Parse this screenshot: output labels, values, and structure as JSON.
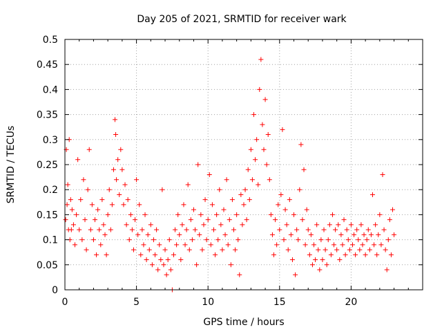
{
  "chart_data": {
    "type": "scatter",
    "title": "Day 205 of 2021, SRMTID for receiver wark",
    "xlabel": "GPS time / hours",
    "ylabel": "SRMTID / TECUs",
    "xlim": [
      0,
      25
    ],
    "ylim": [
      0,
      0.5
    ],
    "x_ticks": [
      {
        "value": 0,
        "label": "0"
      },
      {
        "value": 5,
        "label": "5"
      },
      {
        "value": 10,
        "label": "10"
      },
      {
        "value": 15,
        "label": "15"
      },
      {
        "value": 20,
        "label": "20"
      }
    ],
    "y_ticks": [
      {
        "value": 0,
        "label": "0"
      },
      {
        "value": 0.05,
        "label": "0.05"
      },
      {
        "value": 0.1,
        "label": "0.1"
      },
      {
        "value": 0.15,
        "label": "0.15"
      },
      {
        "value": 0.2,
        "label": "0.2"
      },
      {
        "value": 0.25,
        "label": "0.25"
      },
      {
        "value": 0.3,
        "label": "0.3"
      },
      {
        "value": 0.35,
        "label": "0.35"
      },
      {
        "value": 0.4,
        "label": "0.4"
      },
      {
        "value": 0.45,
        "label": "0.45"
      },
      {
        "value": 0.5,
        "label": "0.5"
      }
    ],
    "grid": true,
    "marker": "+",
    "color": "#ff0000",
    "series": [
      {
        "name": "SRMTID",
        "points": [
          [
            0.05,
            0.14
          ],
          [
            0.1,
            0.28
          ],
          [
            0.15,
            0.17
          ],
          [
            0.2,
            0.21
          ],
          [
            0.25,
            0.12
          ],
          [
            0.3,
            0.3
          ],
          [
            0.35,
            0.1
          ],
          [
            0.4,
            0.18
          ],
          [
            0.45,
            0.12
          ],
          [
            0.5,
            0.16
          ],
          [
            0.6,
            0.13
          ],
          [
            0.7,
            0.09
          ],
          [
            0.8,
            0.15
          ],
          [
            0.9,
            0.26
          ],
          [
            1.0,
            0.12
          ],
          [
            1.1,
            0.18
          ],
          [
            1.2,
            0.1
          ],
          [
            1.3,
            0.22
          ],
          [
            1.4,
            0.14
          ],
          [
            1.5,
            0.08
          ],
          [
            1.6,
            0.2
          ],
          [
            1.7,
            0.28
          ],
          [
            1.8,
            0.12
          ],
          [
            1.9,
            0.17
          ],
          [
            2.0,
            0.1
          ],
          [
            2.1,
            0.14
          ],
          [
            2.2,
            0.07
          ],
          [
            2.3,
            0.16
          ],
          [
            2.4,
            0.12
          ],
          [
            2.5,
            0.09
          ],
          [
            2.6,
            0.18
          ],
          [
            2.7,
            0.13
          ],
          [
            2.8,
            0.11
          ],
          [
            2.9,
            0.07
          ],
          [
            3.0,
            0.15
          ],
          [
            3.1,
            0.2
          ],
          [
            3.2,
            0.12
          ],
          [
            3.3,
            0.17
          ],
          [
            3.4,
            0.24
          ],
          [
            3.5,
            0.34
          ],
          [
            3.55,
            0.31
          ],
          [
            3.6,
            0.22
          ],
          [
            3.7,
            0.26
          ],
          [
            3.8,
            0.19
          ],
          [
            3.9,
            0.28
          ],
          [
            4.0,
            0.24
          ],
          [
            4.1,
            0.17
          ],
          [
            4.2,
            0.21
          ],
          [
            4.3,
            0.13
          ],
          [
            4.4,
            0.18
          ],
          [
            4.5,
            0.1
          ],
          [
            4.6,
            0.15
          ],
          [
            4.7,
            0.12
          ],
          [
            4.8,
            0.08
          ],
          [
            4.9,
            0.14
          ],
          [
            5.0,
            0.22
          ],
          [
            5.1,
            0.11
          ],
          [
            5.2,
            0.17
          ],
          [
            5.3,
            0.07
          ],
          [
            5.4,
            0.12
          ],
          [
            5.5,
            0.09
          ],
          [
            5.6,
            0.15
          ],
          [
            5.7,
            0.06
          ],
          [
            5.8,
            0.11
          ],
          [
            5.9,
            0.08
          ],
          [
            6.0,
            0.13
          ],
          [
            6.1,
            0.05
          ],
          [
            6.2,
            0.1
          ],
          [
            6.3,
            0.07
          ],
          [
            6.4,
            0.12
          ],
          [
            6.5,
            0.04
          ],
          [
            6.6,
            0.09
          ],
          [
            6.7,
            0.06
          ],
          [
            6.8,
            0.2
          ],
          [
            6.9,
            0.05
          ],
          [
            7.0,
            0.08
          ],
          [
            7.1,
            0.03
          ],
          [
            7.2,
            0.06
          ],
          [
            7.3,
            0.1
          ],
          [
            7.4,
            0.04
          ],
          [
            7.5,
            0.0
          ],
          [
            7.6,
            0.07
          ],
          [
            7.7,
            0.12
          ],
          [
            7.8,
            0.09
          ],
          [
            7.9,
            0.15
          ],
          [
            8.0,
            0.11
          ],
          [
            8.1,
            0.06
          ],
          [
            8.2,
            0.13
          ],
          [
            8.3,
            0.17
          ],
          [
            8.4,
            0.09
          ],
          [
            8.5,
            0.12
          ],
          [
            8.6,
            0.21
          ],
          [
            8.7,
            0.08
          ],
          [
            8.8,
            0.14
          ],
          [
            8.9,
            0.1
          ],
          [
            9.0,
            0.16
          ],
          [
            9.1,
            0.12
          ],
          [
            9.2,
            0.05
          ],
          [
            9.3,
            0.25
          ],
          [
            9.4,
            0.11
          ],
          [
            9.5,
            0.15
          ],
          [
            9.6,
            0.08
          ],
          [
            9.7,
            0.13
          ],
          [
            9.8,
            0.18
          ],
          [
            9.9,
            0.1
          ],
          [
            10.0,
            0.14
          ],
          [
            10.1,
            0.23
          ],
          [
            10.2,
            0.09
          ],
          [
            10.3,
            0.17
          ],
          [
            10.4,
            0.12
          ],
          [
            10.5,
            0.07
          ],
          [
            10.6,
            0.15
          ],
          [
            10.7,
            0.1
          ],
          [
            10.8,
            0.2
          ],
          [
            10.9,
            0.13
          ],
          [
            11.0,
            0.08
          ],
          [
            11.1,
            0.16
          ],
          [
            11.2,
            0.11
          ],
          [
            11.3,
            0.22
          ],
          [
            11.4,
            0.09
          ],
          [
            11.5,
            0.14
          ],
          [
            11.6,
            0.05
          ],
          [
            11.7,
            0.18
          ],
          [
            11.8,
            0.12
          ],
          [
            11.9,
            0.08
          ],
          [
            12.0,
            0.15
          ],
          [
            12.1,
            0.1
          ],
          [
            12.2,
            0.03
          ],
          [
            12.3,
            0.19
          ],
          [
            12.4,
            0.13
          ],
          [
            12.5,
            0.17
          ],
          [
            12.6,
            0.2
          ],
          [
            12.7,
            0.14
          ],
          [
            12.8,
            0.24
          ],
          [
            12.9,
            0.18
          ],
          [
            13.0,
            0.28
          ],
          [
            13.1,
            0.22
          ],
          [
            13.2,
            0.35
          ],
          [
            13.3,
            0.26
          ],
          [
            13.4,
            0.3
          ],
          [
            13.5,
            0.21
          ],
          [
            13.6,
            0.4
          ],
          [
            13.7,
            0.46
          ],
          [
            13.8,
            0.33
          ],
          [
            13.9,
            0.28
          ],
          [
            14.0,
            0.38
          ],
          [
            14.1,
            0.25
          ],
          [
            14.2,
            0.31
          ],
          [
            14.3,
            0.22
          ],
          [
            14.4,
            0.15
          ],
          [
            14.5,
            0.11
          ],
          [
            14.6,
            0.07
          ],
          [
            14.7,
            0.14
          ],
          [
            14.8,
            0.09
          ],
          [
            14.9,
            0.17
          ],
          [
            15.0,
            0.12
          ],
          [
            15.1,
            0.19
          ],
          [
            15.2,
            0.32
          ],
          [
            15.3,
            0.1
          ],
          [
            15.4,
            0.16
          ],
          [
            15.5,
            0.13
          ],
          [
            15.6,
            0.08
          ],
          [
            15.7,
            0.18
          ],
          [
            15.8,
            0.11
          ],
          [
            15.9,
            0.06
          ],
          [
            16.0,
            0.15
          ],
          [
            16.1,
            0.03
          ],
          [
            16.2,
            0.12
          ],
          [
            16.3,
            0.1
          ],
          [
            16.4,
            0.2
          ],
          [
            16.5,
            0.29
          ],
          [
            16.6,
            0.14
          ],
          [
            16.7,
            0.24
          ],
          [
            16.8,
            0.09
          ],
          [
            16.9,
            0.16
          ],
          [
            17.0,
            0.12
          ],
          [
            17.1,
            0.07
          ],
          [
            17.2,
            0.11
          ],
          [
            17.3,
            0.05
          ],
          [
            17.4,
            0.09
          ],
          [
            17.5,
            0.06
          ],
          [
            17.6,
            0.13
          ],
          [
            17.7,
            0.08
          ],
          [
            17.8,
            0.04
          ],
          [
            17.9,
            0.1
          ],
          [
            18.0,
            0.06
          ],
          [
            18.1,
            0.12
          ],
          [
            18.2,
            0.08
          ],
          [
            18.3,
            0.05
          ],
          [
            18.4,
            0.1
          ],
          [
            18.5,
            0.13
          ],
          [
            18.6,
            0.07
          ],
          [
            18.7,
            0.15
          ],
          [
            18.8,
            0.09
          ],
          [
            18.9,
            0.12
          ],
          [
            19.0,
            0.08
          ],
          [
            19.1,
            0.13
          ],
          [
            19.2,
            0.06
          ],
          [
            19.3,
            0.11
          ],
          [
            19.4,
            0.09
          ],
          [
            19.5,
            0.14
          ],
          [
            19.6,
            0.07
          ],
          [
            19.7,
            0.12
          ],
          [
            19.8,
            0.1
          ],
          [
            19.9,
            0.08
          ],
          [
            20.0,
            0.13
          ],
          [
            20.1,
            0.09
          ],
          [
            20.2,
            0.11
          ],
          [
            20.3,
            0.07
          ],
          [
            20.4,
            0.12
          ],
          [
            20.5,
            0.1
          ],
          [
            20.6,
            0.08
          ],
          [
            20.7,
            0.13
          ],
          [
            20.8,
            0.09
          ],
          [
            20.9,
            0.11
          ],
          [
            21.0,
            0.07
          ],
          [
            21.1,
            0.1
          ],
          [
            21.2,
            0.12
          ],
          [
            21.3,
            0.08
          ],
          [
            21.4,
            0.11
          ],
          [
            21.5,
            0.19
          ],
          [
            21.6,
            0.09
          ],
          [
            21.7,
            0.13
          ],
          [
            21.8,
            0.07
          ],
          [
            21.9,
            0.11
          ],
          [
            22.0,
            0.15
          ],
          [
            22.1,
            0.09
          ],
          [
            22.2,
            0.23
          ],
          [
            22.3,
            0.12
          ],
          [
            22.4,
            0.08
          ],
          [
            22.5,
            0.04
          ],
          [
            22.6,
            0.1
          ],
          [
            22.7,
            0.14
          ],
          [
            22.8,
            0.07
          ],
          [
            22.9,
            0.16
          ],
          [
            23.0,
            0.11
          ]
        ]
      }
    ]
  }
}
